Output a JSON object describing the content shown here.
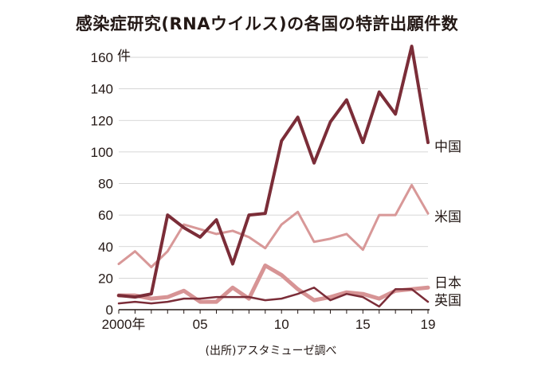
{
  "chart_data": {
    "type": "line",
    "title": "感染症研究(RNAウイルス)の各国の特許出願件数",
    "ylabel": "件",
    "x_start": 2000,
    "x_end": 2019,
    "ylim": [
      0,
      160
    ],
    "yticks": [
      0,
      20,
      40,
      60,
      80,
      100,
      120,
      140,
      160
    ],
    "xtick_labels": [
      {
        "x": 2000,
        "label": "2000年"
      },
      {
        "x": 2005,
        "label": "05"
      },
      {
        "x": 2010,
        "label": "10"
      },
      {
        "x": 2015,
        "label": "15"
      },
      {
        "x": 2019,
        "label": "19"
      }
    ],
    "series": [
      {
        "name": "中国",
        "color": "#7b2d38",
        "width": 4,
        "values": [
          9,
          8,
          10,
          60,
          52,
          46,
          57,
          29,
          60,
          61,
          107,
          122,
          93,
          119,
          133,
          106,
          138,
          124,
          167,
          106
        ]
      },
      {
        "name": "米国",
        "color": "#d89898",
        "width": 3,
        "values": [
          29,
          37,
          27,
          37,
          54,
          51,
          48,
          50,
          46,
          39,
          54,
          62,
          43,
          45,
          48,
          38,
          60,
          60,
          79,
          61
        ]
      },
      {
        "name": "日本",
        "color": "#d79495",
        "width": 5,
        "values": [
          9,
          9,
          7,
          8,
          12,
          5,
          5,
          14,
          7,
          28,
          22,
          13,
          6,
          8,
          11,
          10,
          7,
          12,
          13,
          14
        ]
      },
      {
        "name": "英国",
        "color": "#7b2d38",
        "width": 2.5,
        "values": [
          4,
          5,
          4,
          5,
          7,
          7,
          8,
          8,
          8,
          6,
          7,
          10,
          14,
          6,
          10,
          8,
          2,
          13,
          13,
          5
        ]
      }
    ],
    "source": "(出所)アスタミューゼ調べ"
  }
}
